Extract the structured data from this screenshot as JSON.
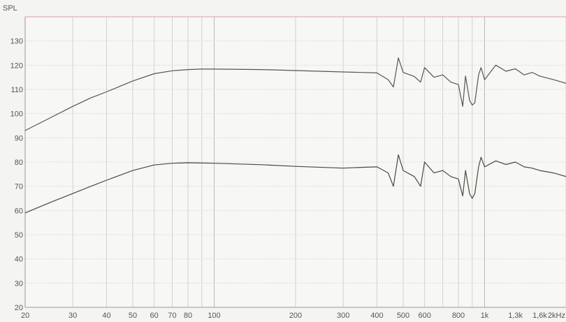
{
  "chart_data": {
    "type": "line",
    "ylabel": "SPL",
    "xscale": "log",
    "xlim": [
      20,
      2000
    ],
    "ylim": [
      20,
      140
    ],
    "grid": true,
    "x_ticks": [
      {
        "value": 20,
        "label": "20"
      },
      {
        "value": 30,
        "label": "30"
      },
      {
        "value": 40,
        "label": "40"
      },
      {
        "value": 50,
        "label": "50"
      },
      {
        "value": 60,
        "label": "60"
      },
      {
        "value": 70,
        "label": "70"
      },
      {
        "value": 80,
        "label": "80"
      },
      {
        "value": 100,
        "label": "100"
      },
      {
        "value": 200,
        "label": "200"
      },
      {
        "value": 300,
        "label": "300"
      },
      {
        "value": 400,
        "label": "400"
      },
      {
        "value": 500,
        "label": "500"
      },
      {
        "value": 600,
        "label": "600"
      },
      {
        "value": 800,
        "label": "800"
      },
      {
        "value": 1000,
        "label": "1k"
      },
      {
        "value": 1300,
        "label": "1,3k"
      },
      {
        "value": 1600,
        "label": "1,6k"
      },
      {
        "value": 2000,
        "label": "2kHz"
      }
    ],
    "y_ticks": [
      20,
      30,
      40,
      50,
      60,
      70,
      80,
      90,
      100,
      110,
      120,
      130
    ],
    "series": [
      {
        "color": "#555555",
        "x": [
          20,
          25,
          30,
          35,
          40,
          50,
          60,
          70,
          80,
          90,
          100,
          150,
          200,
          300,
          350,
          400,
          440,
          460,
          480,
          500,
          550,
          580,
          600,
          650,
          700,
          750,
          800,
          830,
          850,
          880,
          900,
          920,
          950,
          970,
          1000,
          1100,
          1200,
          1300,
          1400,
          1500,
          1600,
          1800,
          2000
        ],
        "y": [
          93,
          98.5,
          103,
          106.5,
          109,
          113.5,
          116.5,
          117.7,
          118.2,
          118.4,
          118.4,
          118.2,
          117.8,
          117.2,
          117,
          116.8,
          114,
          111,
          123,
          117,
          115.3,
          113,
          119,
          115,
          116,
          113,
          112,
          103,
          115.5,
          105.5,
          103.5,
          104.5,
          116,
          119,
          114,
          120,
          117.5,
          118.5,
          116,
          117,
          115.5,
          114,
          112.5
        ]
      },
      {
        "color": "#4a4a3a",
        "x": [
          20,
          25,
          30,
          35,
          40,
          50,
          60,
          70,
          80,
          90,
          100,
          150,
          200,
          300,
          350,
          400,
          440,
          460,
          480,
          500,
          550,
          580,
          600,
          650,
          700,
          750,
          800,
          830,
          850,
          880,
          900,
          920,
          950,
          970,
          1000,
          1100,
          1200,
          1300,
          1400,
          1500,
          1600,
          1800,
          2000
        ],
        "y": [
          59,
          63.5,
          67,
          70,
          72.5,
          76.5,
          78.8,
          79.5,
          79.7,
          79.6,
          79.5,
          78.9,
          78.2,
          77.5,
          77.8,
          78,
          75.5,
          70,
          83,
          76.5,
          74,
          70,
          80,
          75.5,
          76.5,
          74,
          73,
          66,
          76.5,
          67,
          65,
          67,
          78,
          82,
          78,
          80.5,
          79,
          80,
          78,
          77.5,
          76.5,
          75.5,
          74
        ]
      }
    ]
  }
}
